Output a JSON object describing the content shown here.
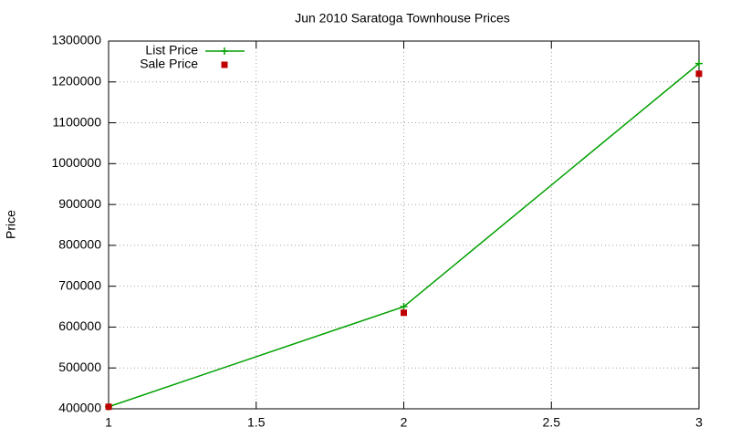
{
  "chart_data": {
    "type": "line",
    "title": "Jun 2010 Saratoga Townhouse Prices",
    "y_label": "Price",
    "x": [
      1,
      2,
      3
    ],
    "series": [
      {
        "name": "List Price",
        "color": "#00a000",
        "values": [
          405000,
          650000,
          1245000
        ],
        "line": true,
        "marker": "plus"
      },
      {
        "name": "Sale Price",
        "color": "#c00000",
        "values": [
          405000,
          635000,
          1220000
        ],
        "line": false,
        "marker": "square"
      }
    ],
    "xlim": [
      1,
      3
    ],
    "xticks": [
      1,
      1.5,
      2,
      2.5,
      3
    ],
    "ylim": [
      400000,
      1300000
    ],
    "yticks": [
      400000,
      500000,
      600000,
      700000,
      800000,
      900000,
      1000000,
      1100000,
      1200000,
      1300000
    ],
    "grid": true,
    "legend": "top-left"
  }
}
